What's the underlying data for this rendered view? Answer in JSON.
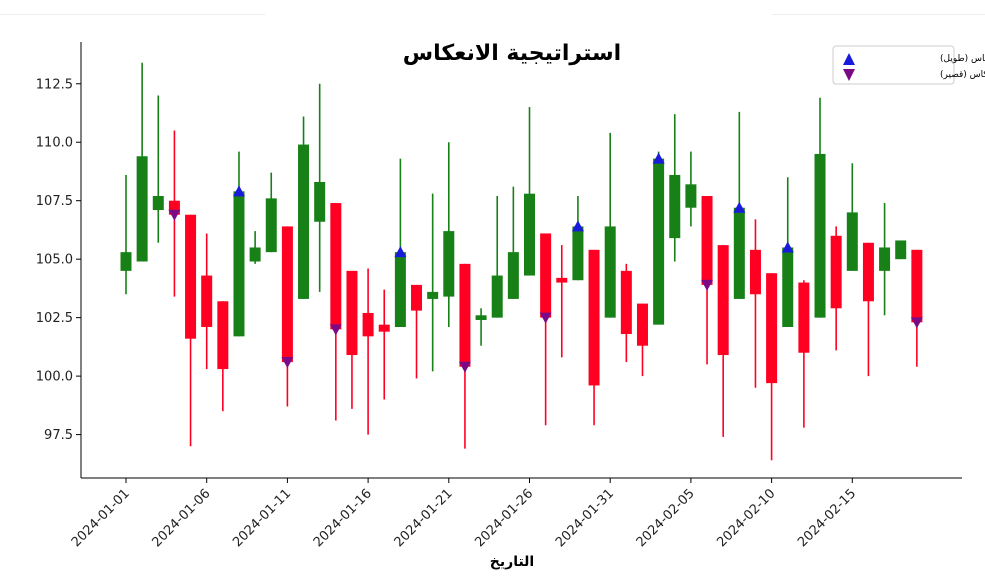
{
  "chart_data": {
    "type": "candlestick",
    "title": "استراتيجية الانعكاس",
    "xlabel": "التاريخ",
    "ylabel": "",
    "ylim": [
      95.9,
      114.2
    ],
    "y_ticks": [
      97.5,
      100.0,
      102.5,
      105.0,
      107.5,
      110.0,
      112.5
    ],
    "y_tick_labels": [
      "97.5",
      "100.0",
      "102.5",
      "105.0",
      "107.5",
      "110.0",
      "112.5"
    ],
    "x_tick_labels": [
      "2024-01-01",
      "2024-01-06",
      "2024-01-11",
      "2024-01-16",
      "2024-01-21",
      "2024-01-26",
      "2024-01-31",
      "2024-02-05",
      "2024-02-10",
      "2024-02-15"
    ],
    "x_tick_index": [
      0,
      5,
      10,
      15,
      20,
      25,
      30,
      35,
      40,
      45
    ],
    "grid": false,
    "legend_position": "top-right",
    "colors": {
      "up": "#178017",
      "down": "#ff0022",
      "long_marker": "#1a1adc",
      "short_marker": "#7b0a86"
    },
    "legend": [
      {
        "label": "الانعكاس (طويل)",
        "marker": "triangle-up"
      },
      {
        "label": "الانعكاس (قصير)",
        "marker": "triangle-down"
      }
    ],
    "candles": [
      {
        "date": "2024-01-01",
        "open": 104.5,
        "high": 108.6,
        "low": 103.5,
        "close": 105.3
      },
      {
        "date": "2024-01-02",
        "open": 104.9,
        "high": 113.4,
        "low": 104.9,
        "close": 109.4
      },
      {
        "date": "2024-01-03",
        "open": 107.1,
        "high": 112.0,
        "low": 105.7,
        "close": 107.7
      },
      {
        "date": "2024-01-04",
        "open": 107.5,
        "high": 110.5,
        "low": 103.4,
        "close": 106.9,
        "signal": "short"
      },
      {
        "date": "2024-01-05",
        "open": 106.9,
        "high": 106.9,
        "low": 97.0,
        "close": 101.6
      },
      {
        "date": "2024-01-06",
        "open": 104.3,
        "high": 106.1,
        "low": 100.3,
        "close": 102.1
      },
      {
        "date": "2024-01-07",
        "open": 103.2,
        "high": 103.2,
        "low": 98.5,
        "close": 100.3
      },
      {
        "date": "2024-01-08",
        "open": 101.7,
        "high": 109.6,
        "low": 101.7,
        "close": 107.9,
        "signal": "long"
      },
      {
        "date": "2024-01-09",
        "open": 104.9,
        "high": 106.2,
        "low": 104.8,
        "close": 105.5
      },
      {
        "date": "2024-01-10",
        "open": 105.3,
        "high": 108.7,
        "low": 105.3,
        "close": 107.6
      },
      {
        "date": "2024-01-11",
        "open": 106.4,
        "high": 106.4,
        "low": 98.7,
        "close": 100.6,
        "signal": "short"
      },
      {
        "date": "2024-01-12",
        "open": 103.3,
        "high": 111.1,
        "low": 103.3,
        "close": 109.9
      },
      {
        "date": "2024-01-13",
        "open": 106.6,
        "high": 112.5,
        "low": 103.6,
        "close": 108.3
      },
      {
        "date": "2024-01-14",
        "open": 107.4,
        "high": 107.4,
        "low": 98.1,
        "close": 102.0,
        "signal": "short"
      },
      {
        "date": "2024-01-15",
        "open": 104.5,
        "high": 104.5,
        "low": 98.6,
        "close": 100.9
      },
      {
        "date": "2024-01-16",
        "open": 102.7,
        "high": 104.6,
        "low": 97.5,
        "close": 101.7
      },
      {
        "date": "2024-01-17",
        "open": 102.2,
        "high": 103.7,
        "low": 99.0,
        "close": 101.9
      },
      {
        "date": "2024-01-18",
        "open": 102.1,
        "high": 109.3,
        "low": 102.1,
        "close": 105.3,
        "signal": "long"
      },
      {
        "date": "2024-01-19",
        "open": 103.9,
        "high": 103.9,
        "low": 99.9,
        "close": 102.8
      },
      {
        "date": "2024-01-20",
        "open": 103.3,
        "high": 107.8,
        "low": 100.2,
        "close": 103.6
      },
      {
        "date": "2024-01-21",
        "open": 103.4,
        "high": 110.0,
        "low": 102.1,
        "close": 106.2
      },
      {
        "date": "2024-01-22",
        "open": 104.8,
        "high": 104.8,
        "low": 96.9,
        "close": 100.4,
        "signal": "short"
      },
      {
        "date": "2024-01-23",
        "open": 102.4,
        "high": 102.9,
        "low": 101.3,
        "close": 102.6
      },
      {
        "date": "2024-01-24",
        "open": 102.5,
        "high": 107.7,
        "low": 102.5,
        "close": 104.3
      },
      {
        "date": "2024-01-25",
        "open": 103.3,
        "high": 108.1,
        "low": 103.3,
        "close": 105.3
      },
      {
        "date": "2024-01-26",
        "open": 104.3,
        "high": 111.5,
        "low": 104.3,
        "close": 107.8
      },
      {
        "date": "2024-01-27",
        "open": 106.1,
        "high": 106.1,
        "low": 97.9,
        "close": 102.5,
        "signal": "short"
      },
      {
        "date": "2024-01-28",
        "open": 104.2,
        "high": 105.6,
        "low": 100.8,
        "close": 104.0
      },
      {
        "date": "2024-01-29",
        "open": 104.1,
        "high": 107.7,
        "low": 104.1,
        "close": 106.4,
        "signal": "long"
      },
      {
        "date": "2024-01-30",
        "open": 105.4,
        "high": 105.4,
        "low": 97.9,
        "close": 99.6
      },
      {
        "date": "2024-01-31",
        "open": 102.5,
        "high": 110.4,
        "low": 102.5,
        "close": 106.4
      },
      {
        "date": "2024-02-01",
        "open": 104.5,
        "high": 104.8,
        "low": 100.6,
        "close": 101.8
      },
      {
        "date": "2024-02-02",
        "open": 103.1,
        "high": 103.1,
        "low": 100.0,
        "close": 101.3
      },
      {
        "date": "2024-02-03",
        "open": 102.2,
        "high": 109.6,
        "low": 102.2,
        "close": 109.3,
        "signal": "long"
      },
      {
        "date": "2024-02-04",
        "open": 105.9,
        "high": 111.2,
        "low": 104.9,
        "close": 108.6
      },
      {
        "date": "2024-02-05",
        "open": 107.2,
        "high": 109.6,
        "low": 106.4,
        "close": 108.2
      },
      {
        "date": "2024-02-06",
        "open": 107.7,
        "high": 107.7,
        "low": 100.5,
        "close": 103.9,
        "signal": "short"
      },
      {
        "date": "2024-02-07",
        "open": 105.6,
        "high": 105.6,
        "low": 97.4,
        "close": 100.9
      },
      {
        "date": "2024-02-08",
        "open": 103.3,
        "high": 111.3,
        "low": 103.3,
        "close": 107.2,
        "signal": "long"
      },
      {
        "date": "2024-02-09",
        "open": 105.4,
        "high": 106.7,
        "low": 99.5,
        "close": 103.5
      },
      {
        "date": "2024-02-10",
        "open": 104.4,
        "high": 104.4,
        "low": 96.4,
        "close": 99.7
      },
      {
        "date": "2024-02-11",
        "open": 102.1,
        "high": 108.5,
        "low": 102.1,
        "close": 105.5,
        "signal": "long"
      },
      {
        "date": "2024-02-12",
        "open": 104.0,
        "high": 104.1,
        "low": 97.8,
        "close": 101.0
      },
      {
        "date": "2024-02-13",
        "open": 102.5,
        "high": 111.9,
        "low": 102.5,
        "close": 109.5
      },
      {
        "date": "2024-02-14",
        "open": 106.0,
        "high": 106.4,
        "low": 101.1,
        "close": 102.9
      },
      {
        "date": "2024-02-15",
        "open": 104.5,
        "high": 109.1,
        "low": 104.5,
        "close": 107.0
      },
      {
        "date": "2024-02-16",
        "open": 105.7,
        "high": 105.7,
        "low": 100.0,
        "close": 103.2
      },
      {
        "date": "2024-02-17",
        "open": 104.5,
        "high": 107.4,
        "low": 102.6,
        "close": 105.5
      },
      {
        "date": "2024-02-18",
        "open": 105.0,
        "high": 105.8,
        "low": 105.0,
        "close": 105.8
      },
      {
        "date": "2024-02-19",
        "open": 105.4,
        "high": 105.4,
        "low": 100.4,
        "close": 102.3,
        "signal": "short"
      }
    ]
  }
}
